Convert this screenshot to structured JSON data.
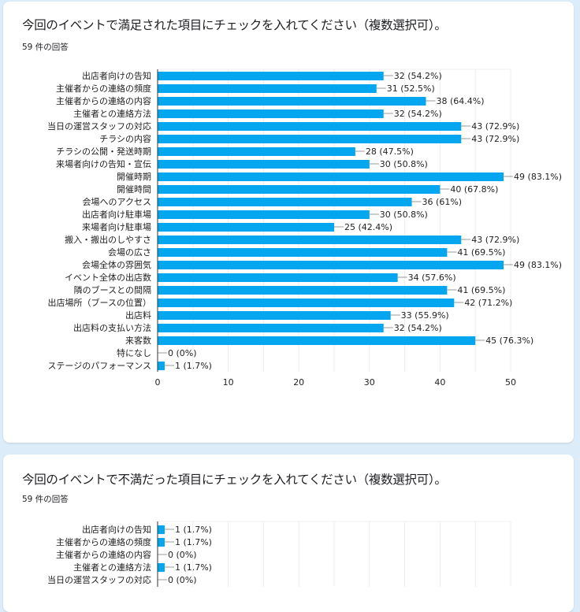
{
  "cards": [
    {
      "title": "今回のイベントで満足された項目にチェックを入れてください（複数選択可）。",
      "response_count": "59 件の回答"
    },
    {
      "title": "今回のイベントで不満だった項目にチェックを入れてください（複数選択可）。",
      "response_count": "59 件の回答"
    }
  ],
  "colors": {
    "bar": "#05a6f0",
    "background": "#dcedf9",
    "card": "#ffffff"
  },
  "chart_data": [
    {
      "type": "bar",
      "orientation": "horizontal",
      "title": "今回のイベントで満足された項目にチェックを入れてください（複数選択可）。",
      "categories": [
        "出店者向けの告知",
        "主催者からの連絡の頻度",
        "主催者からの連絡の内容",
        "主催者との連絡方法",
        "当日の運営スタッフの対応",
        "チラシの内容",
        "チラシの公開・発送時期",
        "来場者向けの告知・宣伝",
        "開催時期",
        "開催時間",
        "会場へのアクセス",
        "出店者向け駐車場",
        "来場者向け駐車場",
        "搬入・搬出のしやすさ",
        "会場の広さ",
        "会場全体の雰囲気",
        "イベント全体の出店数",
        "隣のブースとの間隔",
        "出店場所（ブースの位置）",
        "出店料",
        "出店料の支払い方法",
        "来客数",
        "特になし",
        "ステージのパフォーマンス"
      ],
      "values": [
        32,
        31,
        38,
        32,
        43,
        43,
        28,
        30,
        49,
        40,
        36,
        30,
        25,
        43,
        41,
        49,
        34,
        41,
        42,
        33,
        32,
        45,
        0,
        1
      ],
      "data_labels": [
        "32 (54.2%)",
        "31 (52.5%)",
        "38 (64.4%)",
        "32 (54.2%)",
        "43 (72.9%)",
        "43 (72.9%)",
        "28 (47.5%)",
        "30 (50.8%)",
        "49 (83.1%)",
        "40 (67.8%)",
        "36 (61%)",
        "30 (50.8%)",
        "25 (42.4%)",
        "43 (72.9%)",
        "41 (69.5%)",
        "49 (83.1%)",
        "34 (57.6%)",
        "41 (69.5%)",
        "42 (71.2%)",
        "33 (55.9%)",
        "32 (54.2%)",
        "45 (76.3%)",
        "0 (0%)",
        "1 (1.7%)"
      ],
      "xlim": [
        0,
        50
      ],
      "x_ticks": [
        "0",
        "10",
        "20",
        "30",
        "40",
        "50"
      ],
      "grid": true
    },
    {
      "type": "bar",
      "orientation": "horizontal",
      "title": "今回のイベントで不満だった項目にチェックを入れてください（複数選択可）。",
      "categories": [
        "出店者向けの告知",
        "主催者からの連絡の頻度",
        "主催者からの連絡の内容",
        "主催者との連絡方法",
        "当日の運営スタッフの対応"
      ],
      "values": [
        1,
        1,
        0,
        1,
        0
      ],
      "data_labels": [
        "1 (1.7%)",
        "1 (1.7%)",
        "0 (0%)",
        "1 (1.7%)",
        "0 (0%)"
      ],
      "xlim": [
        0,
        50
      ],
      "grid": true
    }
  ]
}
